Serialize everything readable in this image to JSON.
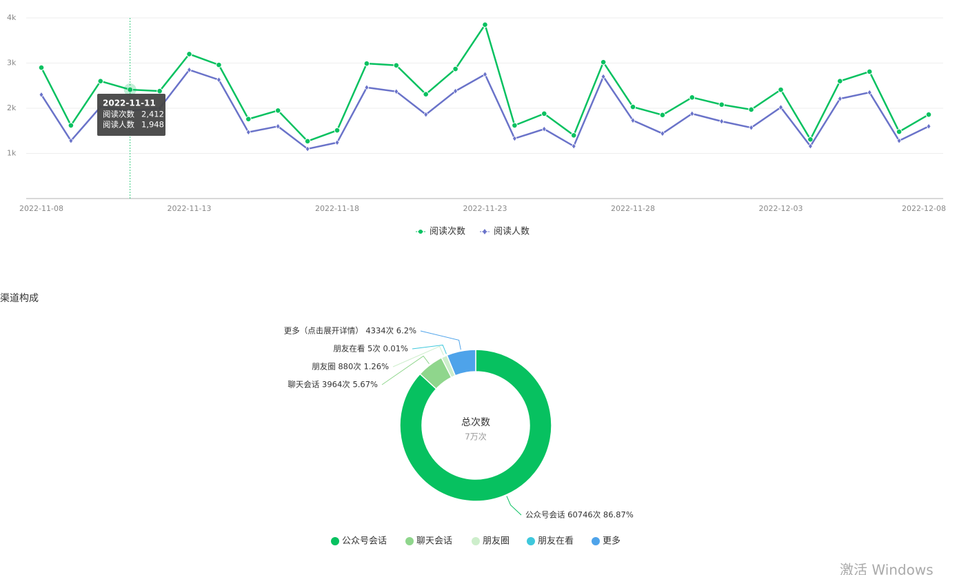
{
  "chart_data": [
    {
      "type": "line",
      "categories": [
        "2022-11-08",
        "2022-11-09",
        "2022-11-10",
        "2022-11-11",
        "2022-11-12",
        "2022-11-13",
        "2022-11-14",
        "2022-11-15",
        "2022-11-16",
        "2022-11-17",
        "2022-11-18",
        "2022-11-19",
        "2022-11-20",
        "2022-11-21",
        "2022-11-22",
        "2022-11-23",
        "2022-11-24",
        "2022-11-25",
        "2022-11-26",
        "2022-11-27",
        "2022-11-28",
        "2022-11-29",
        "2022-11-30",
        "2022-12-01",
        "2022-12-02",
        "2022-12-03",
        "2022-12-04",
        "2022-12-05",
        "2022-12-06",
        "2022-12-07",
        "2022-12-08"
      ],
      "xticks": [
        "2022-11-08",
        "2022-11-13",
        "2022-11-18",
        "2022-11-23",
        "2022-11-28",
        "2022-12-03",
        "2022-12-08"
      ],
      "series": [
        {
          "name": "阅读次数",
          "color": "#07c160",
          "marker": "circle",
          "values": [
            2900,
            1620,
            2600,
            2412,
            2380,
            3200,
            2960,
            1760,
            1950,
            1270,
            1510,
            2990,
            2950,
            2310,
            2870,
            3850,
            1620,
            1880,
            1400,
            3020,
            2030,
            1850,
            2240,
            2080,
            1970,
            2410,
            1310,
            2600,
            2810,
            1480,
            1860
          ]
        },
        {
          "name": "阅读人数",
          "color": "#6a73c9",
          "marker": "diamond",
          "values": [
            2300,
            1280,
            2030,
            1948,
            2000,
            2850,
            2630,
            1470,
            1600,
            1100,
            1240,
            2460,
            2370,
            1860,
            2380,
            2750,
            1330,
            1540,
            1160,
            2700,
            1730,
            1440,
            1880,
            1710,
            1570,
            2020,
            1160,
            2210,
            2350,
            1280,
            1600
          ]
        }
      ],
      "ylim": [
        0,
        4000
      ],
      "yticks": [
        {
          "value": 1000,
          "label": "1k"
        },
        {
          "value": 2000,
          "label": "2k"
        },
        {
          "value": 3000,
          "label": "3k"
        },
        {
          "value": 4000,
          "label": "4k"
        }
      ],
      "grid": true,
      "legend": "bottom",
      "tooltip": {
        "title": "2022-11-11",
        "items": [
          {
            "name": "阅读次数",
            "value": 2412,
            "label": "2,412"
          },
          {
            "name": "阅读人数",
            "value": 1948,
            "label": "1,948"
          }
        ]
      }
    },
    {
      "type": "pie",
      "title": "渠道构成",
      "center_title": "总次数",
      "center_label": "7万次",
      "categories": [
        "公众号会话",
        "聊天会话",
        "朋友圈",
        "朋友在看",
        "更多"
      ],
      "values": [
        60746,
        3964,
        880,
        5,
        4334
      ],
      "value_labels": [
        "公众号会话 60746次 86.87%",
        "聊天会话 3964次 5.67%",
        "朋友圈 880次 1.26%",
        "朋友在看 5次 0.01%",
        "更多（点击展开详情） 4334次 6.2%"
      ],
      "colors": [
        "#07c160",
        "#8fd68c",
        "#cdeecb",
        "#3ec8dc",
        "#4ea3ea"
      ],
      "donut": true,
      "legend": "bottom"
    }
  ],
  "watermark": "激活 Windows"
}
